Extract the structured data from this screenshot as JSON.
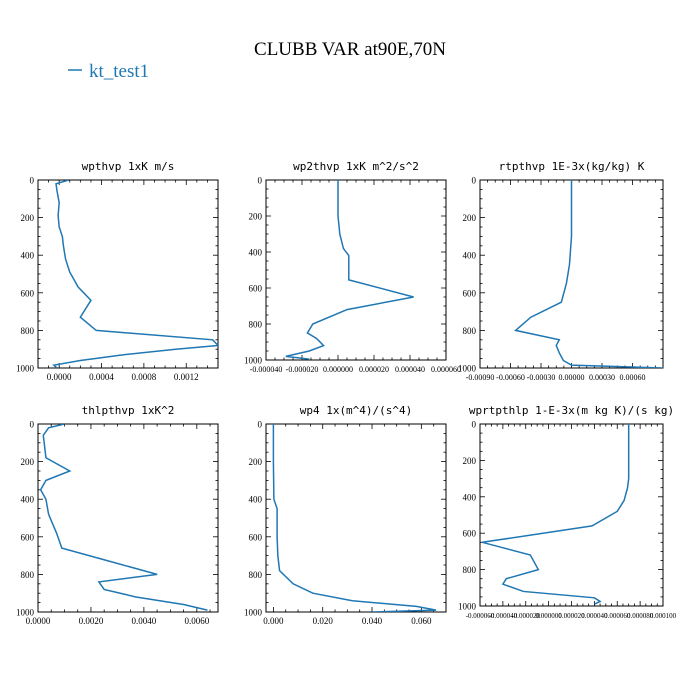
{
  "figure": {
    "title": "CLUBB VAR at90E,70N",
    "legend": [
      {
        "name": "kt_test1",
        "color": "#1f77b4"
      }
    ]
  },
  "chart_data": [
    {
      "type": "line",
      "title": "wpthvp   1xK m/s",
      "series_name": "kt_test1",
      "xlim": [
        -0.0002,
        0.0015
      ],
      "xticks": [
        0.0,
        0.0004,
        0.0008,
        0.0012
      ],
      "xtick_labels": [
        "0.0000",
        "0.0004",
        "0.0008",
        "0.0012"
      ],
      "ylim": [
        0,
        1000
      ],
      "y_inverted": true,
      "yticks": [
        0,
        200,
        400,
        600,
        800,
        1000
      ],
      "ytick_labels": [
        "0",
        "200",
        "400",
        "600",
        "800",
        "1000"
      ],
      "y": [
        0,
        20,
        60,
        120,
        190,
        250,
        300,
        350,
        420,
        490,
        570,
        640,
        730,
        800,
        850,
        880,
        900,
        930,
        960,
        985,
        1000
      ],
      "x": [
        9e-05,
        -3e-05,
        -2e-05,
        0.0,
        -1e-05,
        0.0,
        3e-05,
        4e-05,
        6e-05,
        0.0001,
        0.00018,
        0.0003,
        0.0002,
        0.00035,
        0.00145,
        0.0015,
        0.0011,
        0.0006,
        0.0002,
        -5e-05,
        -2e-05
      ]
    },
    {
      "type": "line",
      "title": "wp2thvp   1xK m^2/s^2",
      "series_name": "kt_test1",
      "xlim": [
        -4e-05,
        6e-05
      ],
      "xticks": [
        -4e-05,
        -2e-05,
        0.0,
        2e-05,
        4e-05,
        6e-05
      ],
      "xtick_labels": [
        "-0.000040",
        "-0.000020",
        "0.000000",
        "0.000020",
        "0.000040",
        "0.000060"
      ],
      "ylim": [
        0,
        1000
      ],
      "y_inverted": true,
      "yticks": [
        0,
        200,
        400,
        600,
        800,
        1000
      ],
      "ytick_labels": [
        "0",
        "200",
        "400",
        "600",
        "800",
        "1000"
      ],
      "y": [
        0,
        100,
        200,
        300,
        380,
        420,
        555,
        650,
        720,
        800,
        850,
        880,
        920,
        950,
        980,
        995
      ],
      "x": [
        0.0,
        0.0,
        0.0,
        1e-06,
        3e-06,
        6e-06,
        6e-06,
        4.2e-05,
        5e-06,
        -1.4e-05,
        -1.7e-05,
        -1.2e-05,
        -8e-06,
        -1.6e-05,
        -2.9e-05,
        -1.6e-05
      ]
    },
    {
      "type": "line",
      "title": "rtpthvp   1E-3x(kg/kg) K",
      "series_name": "kt_test1",
      "xlim": [
        -0.0009,
        0.0009
      ],
      "xticks": [
        -0.0009,
        -0.0006,
        -0.0003,
        0.0,
        0.0003,
        0.0006
      ],
      "xtick_labels": [
        "-0.00090",
        "-0.00060",
        "-0.00030",
        "0.00000",
        "0.00030",
        "0.00060"
      ],
      "ylim": [
        0,
        1000
      ],
      "y_inverted": true,
      "yticks": [
        0,
        200,
        400,
        600,
        800,
        1000
      ],
      "ytick_labels": [
        "0",
        "200",
        "400",
        "600",
        "800",
        "1000"
      ],
      "y": [
        0,
        150,
        300,
        450,
        550,
        650,
        730,
        800,
        850,
        880,
        920,
        960,
        985,
        1000
      ],
      "x": [
        0.0,
        0.0,
        0.0,
        -2e-05,
        -5e-05,
        -0.0001,
        -0.0004,
        -0.00055,
        -0.00012,
        -0.00015,
        -0.00012,
        -8e-05,
        0.0,
        0.0009
      ]
    },
    {
      "type": "line",
      "title": "thlpthvp   1xK^2",
      "series_name": "kt_test1",
      "xlim": [
        0.0,
        0.0068
      ],
      "xticks": [
        0.0,
        0.002,
        0.004,
        0.006
      ],
      "xtick_labels": [
        "0.0000",
        "0.0020",
        "0.0040",
        "0.0060"
      ],
      "ylim": [
        0,
        1000
      ],
      "y_inverted": true,
      "yticks": [
        0,
        200,
        400,
        600,
        800,
        1000
      ],
      "ytick_labels": [
        "0",
        "200",
        "400",
        "600",
        "800",
        "1000"
      ],
      "y": [
        0,
        20,
        60,
        180,
        250,
        300,
        350,
        400,
        480,
        580,
        660,
        730,
        800,
        840,
        880,
        920,
        960,
        990
      ],
      "x": [
        0.001,
        0.0004,
        0.0002,
        0.0003,
        0.0012,
        0.0003,
        0.0001,
        0.0003,
        0.0004,
        0.0007,
        0.0009,
        0.0027,
        0.0045,
        0.0023,
        0.0025,
        0.0037,
        0.0055,
        0.0064
      ]
    },
    {
      "type": "line",
      "title": "wp4   1x(m^4)/(s^4)",
      "series_name": "kt_test1",
      "xlim": [
        -0.003,
        0.07
      ],
      "xticks": [
        0.0,
        0.02,
        0.04,
        0.06
      ],
      "xtick_labels": [
        "0.000",
        "0.020",
        "0.040",
        "0.060"
      ],
      "ylim": [
        0,
        1000
      ],
      "y_inverted": true,
      "yticks": [
        0,
        200,
        400,
        600,
        800,
        1000
      ],
      "ytick_labels": [
        "0",
        "200",
        "400",
        "600",
        "800",
        "1000"
      ],
      "y": [
        0,
        200,
        400,
        450,
        500,
        600,
        700,
        780,
        850,
        900,
        940,
        970,
        990,
        1000
      ],
      "x": [
        0.0,
        0.0,
        0.0002,
        0.0015,
        0.0015,
        0.0015,
        0.0018,
        0.0025,
        0.008,
        0.016,
        0.032,
        0.058,
        0.066,
        0.04
      ]
    },
    {
      "type": "line",
      "title": "wprtpthlp   1-E-3x(m kg K)/(s kg)",
      "series_name": "kt_test1",
      "xlim": [
        -6e-05,
        0.0001
      ],
      "xticks": [
        -6e-05,
        -4e-05,
        -2e-05,
        0.0,
        2e-05,
        4e-05,
        6e-05,
        8e-05,
        0.0001
      ],
      "xtick_labels": [
        "-0.000060",
        "-0.000040",
        "-0.000020",
        "0.000000",
        "0.000020",
        "0.000040",
        "0.000060",
        "0.000080",
        "0.000100"
      ],
      "ylim": [
        0,
        1000
      ],
      "y_inverted": true,
      "yticks": [
        0,
        200,
        400,
        600,
        800,
        1000
      ],
      "ytick_labels": [
        "0",
        "200",
        "400",
        "600",
        "800",
        "1000"
      ],
      "y": [
        0,
        150,
        300,
        350,
        420,
        480,
        560,
        650,
        720,
        800,
        850,
        880,
        920,
        955,
        975,
        990
      ],
      "x": [
        7e-05,
        7e-05,
        7e-05,
        6.9e-05,
        6.6e-05,
        6e-05,
        3.8e-05,
        -5.8e-05,
        -1.6e-05,
        -9e-06,
        -3.7e-05,
        -4e-05,
        -2.2e-05,
        4e-05,
        4.5e-05,
        4e-05
      ]
    }
  ]
}
